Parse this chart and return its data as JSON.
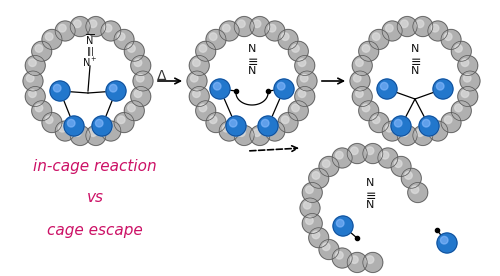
{
  "background_color": "#ffffff",
  "bead_color_blue": "#2277cc",
  "text_color_label": "#cc1166",
  "label_text": [
    "in-cage reaction",
    "vs",
    "cage escape"
  ],
  "label_fontsize": 11,
  "figsize": [
    5.0,
    2.76
  ],
  "dpi": 100
}
